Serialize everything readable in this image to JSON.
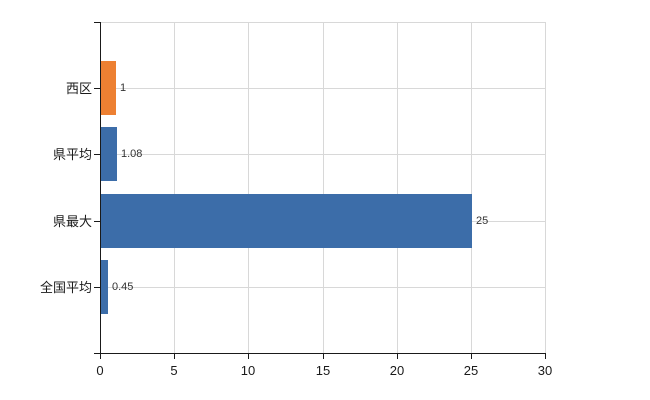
{
  "chart_data": {
    "type": "bar",
    "orientation": "horizontal",
    "title": "",
    "xlabel": "",
    "ylabel": "",
    "categories": [
      "西区",
      "県平均",
      "県最大",
      "全国平均"
    ],
    "values": [
      1,
      1.08,
      25,
      0.45
    ],
    "value_labels": [
      "1",
      "1.08",
      "25",
      "0.45"
    ],
    "bar_colors": [
      "#ED8032",
      "#3C6DA9",
      "#3C6DA9",
      "#3C6DA9"
    ],
    "xlim": [
      0,
      30
    ],
    "x_ticks": [
      0,
      5,
      10,
      15,
      20,
      25,
      30
    ],
    "x_tick_labels": [
      "0",
      "5",
      "10",
      "15",
      "20",
      "25",
      "30"
    ],
    "grid": "on",
    "legend": "none"
  },
  "colors": {
    "background": "#FFFFFF",
    "gridline": "#D8D8D8",
    "axis": "#1A1A1A",
    "category_text": "#1A1A1A",
    "value_text": "#333333",
    "blue_bar": "#3C6DA9",
    "orange_bar": "#ED8032"
  }
}
